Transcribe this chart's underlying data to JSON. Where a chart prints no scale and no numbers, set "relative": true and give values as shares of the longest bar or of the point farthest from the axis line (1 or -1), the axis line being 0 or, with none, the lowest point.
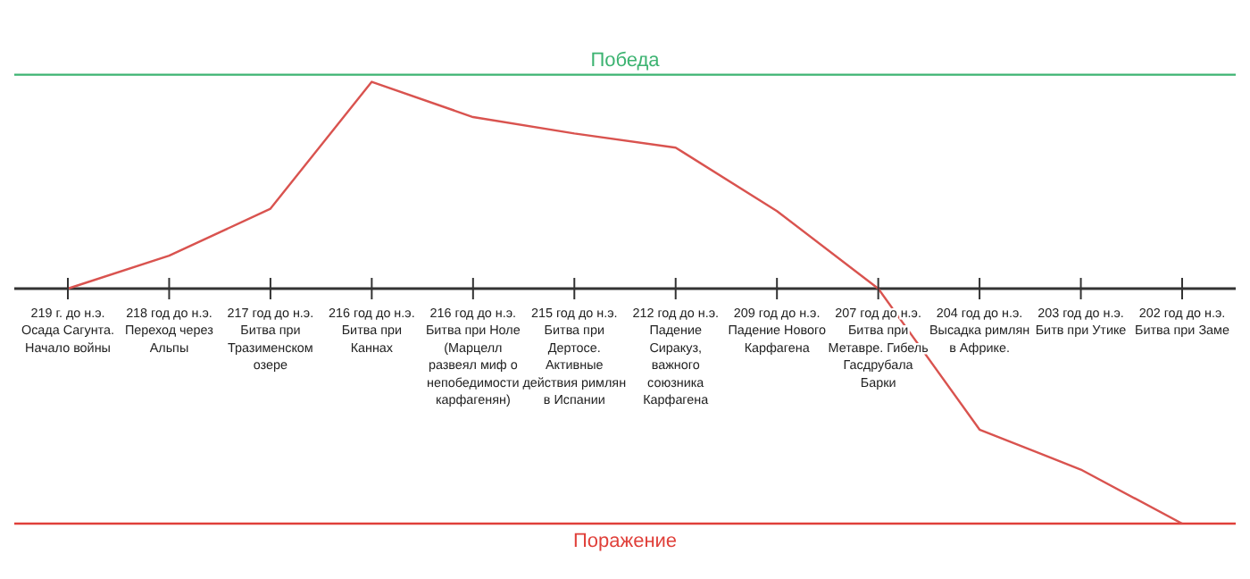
{
  "chart_data": {
    "type": "line",
    "relative": true,
    "categories": [
      "219 г. до н.э. Осада Сагунта. Начало войны",
      "218 год до н.э. Переход через Альпы",
      "217 год до н.э. Битва при Тразименском озере",
      "216 год до н.э. Битва при Каннах",
      "216 год до н.э. Битва при Ноле (Марцелл развеял миф о непобедимости карфагенян)",
      "215 год до н.э. Битва при Дертосе. Активные действия римлян в Испании",
      "212 год до н.э. Падение Сиракуз, важного союзника Карфагена",
      "209 год до н.э. Падение Нового Карфагена",
      "207 год до н.э. Битва при Метавре. Гибель Гасдрубала Барки",
      "204 год до н.э. Высадка римлян в Африке.",
      "203 год до н.э. Битв при Утике",
      "202 год до н.э. Битва при Заме"
    ],
    "series": [
      {
        "color": "#d9534f",
        "values": [
          0,
          0.14,
          0.34,
          0.88,
          0.73,
          0.66,
          0.6,
          0.33,
          0,
          -0.6,
          -0.77,
          -1
        ]
      }
    ],
    "ref_lines": [
      {
        "axis": "y",
        "value": 0.91,
        "label": "Победа",
        "color": "#3cb371"
      },
      {
        "axis": "y",
        "value": -1,
        "label": "Поражение",
        "color": "#e0403a"
      }
    ],
    "marker": "none",
    "line_style": "solid",
    "legend": false,
    "grid": false
  }
}
